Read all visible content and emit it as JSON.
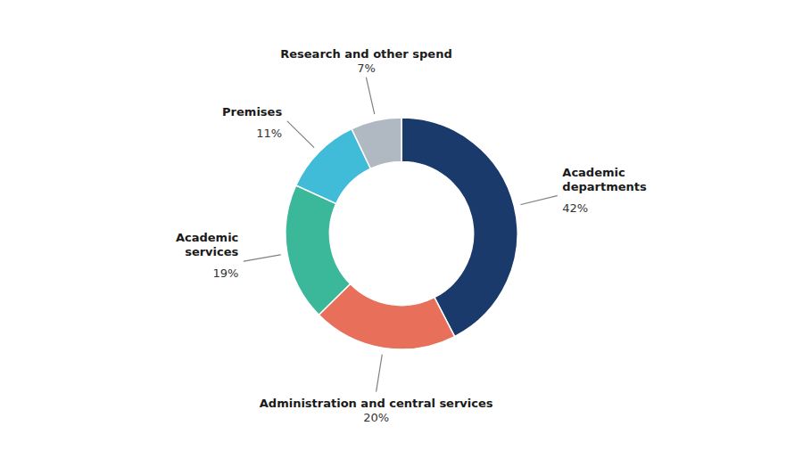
{
  "chart_data": {
    "type": "donut",
    "categories": [
      "Academic\ndepartments",
      "Administration and central services",
      "Academic\nservices",
      "Premises",
      "Research and other spend"
    ],
    "values": [
      42,
      20,
      19,
      11,
      7
    ],
    "value_labels": [
      "42%",
      "20%",
      "19%",
      "11%",
      "7%"
    ],
    "colors": [
      "#1a3a6b",
      "#e8705a",
      "#3ab899",
      "#40bcd8",
      "#b0b8c1"
    ],
    "data_labels": true
  }
}
